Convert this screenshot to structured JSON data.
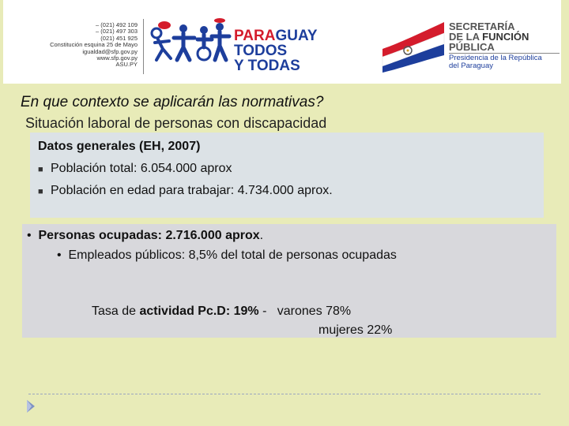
{
  "header": {
    "contact_lines": [
      "– (021) 492 109",
      "– (021) 497 303",
      "(021) 451 925",
      "Constitución esquina 25 de Mayo",
      "igualdad@sfp.gov.py",
      "www.sfp.gov.py",
      "ASU.PY"
    ],
    "campaign_logo": {
      "line1_red": "PARA",
      "line1_blue": "GUAY",
      "line2": "TODOS",
      "line3": "Y TODAS"
    },
    "sfp_logo": {
      "line1": "SECRETARÍA",
      "line2_plain": "DE LA ",
      "line2_bold": "FUNCIÓN",
      "line3": "PÚBLICA",
      "line4": "Presidencia de la República",
      "line5": "del Paraguay"
    },
    "colors": {
      "red": "#d41c2c",
      "blue": "#1d3e9c"
    }
  },
  "slide": {
    "title": "En que contexto se aplicarán las normativas?",
    "subtitle": "Situación laboral de personas con discapacidad",
    "general": {
      "heading": "Datos generales (EH, 2007)",
      "items": [
        "Población total: 6.054.000 aprox",
        "Población en edad para trabajar: 4.734.000 aprox."
      ]
    },
    "employment": {
      "bullet": "•",
      "occupied_label": "Personas ocupadas: 2.716.000 aprox",
      "occupied_suffix": ".",
      "public": "Empleados públicos: 8,5% del total de personas ocupadas",
      "rate_plain": "Tasa de ",
      "rate_bold": "actividad Pc.D: 19%",
      "rate_sep": " -   ",
      "men": "varones 78%",
      "women": "mujeres  22%"
    }
  }
}
